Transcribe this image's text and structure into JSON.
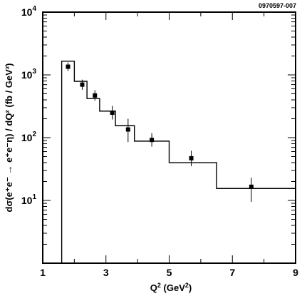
{
  "chart_data": {
    "type": "scatter",
    "corner_label": "0970597-007",
    "xlabel": "Q",
    "xlabel_sup": "2",
    "xlabel_unit": " (GeV",
    "xlabel_unit_sup": "2",
    "xlabel_close": ")",
    "ylabel": "dσ(e⁺e⁻ → e⁺e⁻η) / dQ² (fb / GeV²)",
    "xlim": [
      1,
      9
    ],
    "ylim_log10": [
      0,
      4
    ],
    "yscale": "log",
    "x_ticks": [
      "1",
      "3",
      "5",
      "7",
      "9"
    ],
    "x_tick_values": [
      1,
      3,
      5,
      7,
      9
    ],
    "y_ticks": [
      {
        "base": "10",
        "exp": "1",
        "value": 10
      },
      {
        "base": "10",
        "exp": "2",
        "value": 100
      },
      {
        "base": "10",
        "exp": "3",
        "value": 1000
      },
      {
        "base": "10",
        "exp": "4",
        "value": 10000
      }
    ],
    "grid": false,
    "histogram": {
      "edges": [
        1.6,
        2.0,
        2.4,
        2.8,
        3.3,
        3.9,
        5.0,
        6.5,
        9.0
      ],
      "values": [
        1650,
        790,
        420,
        265,
        155,
        88,
        40,
        15.5
      ]
    },
    "points": [
      {
        "x": 1.8,
        "y": 1350,
        "y_low": 1150,
        "y_high": 1580
      },
      {
        "x": 2.25,
        "y": 700,
        "y_low": 580,
        "y_high": 840
      },
      {
        "x": 2.65,
        "y": 470,
        "y_low": 390,
        "y_high": 570
      },
      {
        "x": 3.2,
        "y": 250,
        "y_low": 195,
        "y_high": 320
      },
      {
        "x": 3.7,
        "y": 135,
        "y_low": 85,
        "y_high": 200
      },
      {
        "x": 4.45,
        "y": 92,
        "y_low": 72,
        "y_high": 118
      },
      {
        "x": 5.7,
        "y": 47,
        "y_low": 35,
        "y_high": 62
      },
      {
        "x": 7.6,
        "y": 16.5,
        "y_low": 9.5,
        "y_high": 23
      }
    ]
  }
}
